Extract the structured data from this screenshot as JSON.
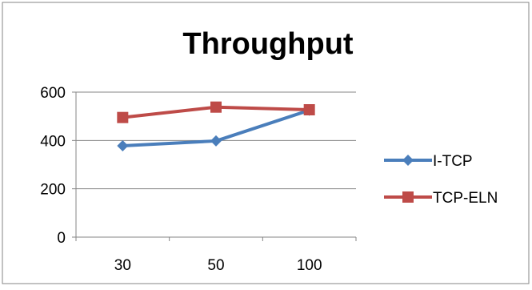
{
  "chart_data": {
    "type": "line",
    "title": "Throughput",
    "xlabel": "",
    "ylabel": "",
    "categories": [
      "30",
      "50",
      "100"
    ],
    "ylim": [
      0,
      600
    ],
    "yticks": [
      0,
      200,
      400,
      600
    ],
    "grid": "horizontal",
    "legend_position": "right",
    "series": [
      {
        "name": "I-TCP",
        "values": [
          378,
          398,
          525
        ],
        "color": "#4a7ebb",
        "marker": "diamond"
      },
      {
        "name": "TCP-ELN",
        "values": [
          495,
          538,
          527
        ],
        "color": "#be4b48",
        "marker": "square"
      }
    ]
  }
}
